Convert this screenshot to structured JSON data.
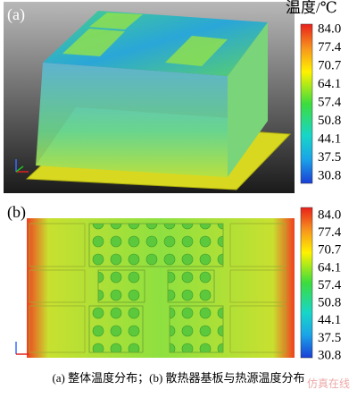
{
  "colorbar": {
    "title": "温度/℃",
    "ticks": [
      "84.0",
      "77.4",
      "70.7",
      "64.1",
      "57.4",
      "50.8",
      "44.1",
      "37.5",
      "30.8"
    ]
  },
  "panels": [
    {
      "label": "(a)"
    },
    {
      "label": "(b)"
    }
  ],
  "caption": "(a) 整体温度分布；(b) 散热器基板与热源温度分布",
  "watermark": "仿真在线"
}
